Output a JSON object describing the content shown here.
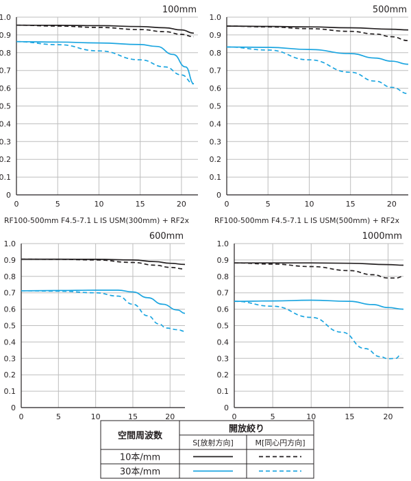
{
  "chart_data": [
    {
      "type": "line",
      "title": "100mm",
      "caption": "RF100-500mm F4.5-7.1 L IS USM(300mm) + RF2x",
      "xlim": [
        0,
        22
      ],
      "ylim": [
        0,
        1.0
      ],
      "xticks": [
        "0",
        "5",
        "10",
        "15",
        "20"
      ],
      "yticks": [
        "0",
        "0.1",
        "0.2",
        "0.3",
        "0.4",
        "0.5",
        "0.6",
        "0.7",
        "0.8",
        "0.9",
        "1.0"
      ],
      "series": [
        {
          "name": "10本/mm S",
          "color": "#231f20",
          "dash": false,
          "points": [
            [
              0,
              0.955
            ],
            [
              5,
              0.954
            ],
            [
              10,
              0.952
            ],
            [
              15,
              0.947
            ],
            [
              18,
              0.94
            ],
            [
              20,
              0.928
            ],
            [
              21.5,
              0.91
            ]
          ]
        },
        {
          "name": "10本/mm M",
          "color": "#231f20",
          "dash": true,
          "points": [
            [
              0,
              0.955
            ],
            [
              5,
              0.95
            ],
            [
              10,
              0.942
            ],
            [
              15,
              0.93
            ],
            [
              18,
              0.918
            ],
            [
              20,
              0.903
            ],
            [
              21.5,
              0.89
            ]
          ]
        },
        {
          "name": "30本/mm S",
          "color": "#1ba5e0",
          "dash": false,
          "points": [
            [
              0,
              0.862
            ],
            [
              5,
              0.86
            ],
            [
              10,
              0.855
            ],
            [
              15,
              0.846
            ],
            [
              17,
              0.835
            ],
            [
              19,
              0.79
            ],
            [
              20.5,
              0.72
            ],
            [
              21.5,
              0.625
            ]
          ]
        },
        {
          "name": "30本/mm M",
          "color": "#1ba5e0",
          "dash": true,
          "points": [
            [
              0,
              0.862
            ],
            [
              5,
              0.845
            ],
            [
              10,
              0.81
            ],
            [
              15,
              0.76
            ],
            [
              18,
              0.72
            ],
            [
              20,
              0.675
            ],
            [
              21.5,
              0.625
            ]
          ]
        }
      ]
    },
    {
      "type": "line",
      "title": "500mm",
      "caption": "RF100-500mm F4.5-7.1 L IS USM(500mm) + RF2x",
      "xlim": [
        0,
        22
      ],
      "ylim": [
        0,
        1.0
      ],
      "xticks": [
        "0",
        "5",
        "10",
        "15",
        "20"
      ],
      "yticks": [
        "0",
        "0.1",
        "0.2",
        "0.3",
        "0.4",
        "0.5",
        "0.6",
        "0.7",
        "0.8",
        "0.9",
        "1.0"
      ],
      "series": [
        {
          "name": "10本/mm S",
          "color": "#231f20",
          "dash": false,
          "points": [
            [
              0,
              0.95
            ],
            [
              5,
              0.948
            ],
            [
              10,
              0.945
            ],
            [
              15,
              0.94
            ],
            [
              20,
              0.932
            ],
            [
              22,
              0.928
            ]
          ]
        },
        {
          "name": "10本/mm M",
          "color": "#231f20",
          "dash": true,
          "points": [
            [
              0,
              0.95
            ],
            [
              5,
              0.945
            ],
            [
              10,
              0.935
            ],
            [
              15,
              0.92
            ],
            [
              18,
              0.905
            ],
            [
              20,
              0.89
            ],
            [
              22,
              0.868
            ]
          ]
        },
        {
          "name": "30本/mm S",
          "color": "#1ba5e0",
          "dash": false,
          "points": [
            [
              0,
              0.832
            ],
            [
              5,
              0.83
            ],
            [
              10,
              0.818
            ],
            [
              15,
              0.795
            ],
            [
              18,
              0.77
            ],
            [
              20,
              0.752
            ],
            [
              22,
              0.735
            ]
          ]
        },
        {
          "name": "30本/mm M",
          "color": "#1ba5e0",
          "dash": true,
          "points": [
            [
              0,
              0.832
            ],
            [
              5,
              0.815
            ],
            [
              10,
              0.76
            ],
            [
              15,
              0.69
            ],
            [
              18,
              0.64
            ],
            [
              20,
              0.605
            ],
            [
              22,
              0.57
            ]
          ]
        }
      ]
    },
    {
      "type": "line",
      "title": "600mm",
      "caption": "",
      "xlim": [
        0,
        22
      ],
      "ylim": [
        0,
        1.0
      ],
      "xticks": [
        "0",
        "5",
        "10",
        "15",
        "20"
      ],
      "yticks": [
        "0",
        "0.1",
        "0.2",
        "0.3",
        "0.4",
        "0.5",
        "0.6",
        "0.7",
        "0.8",
        "0.9",
        "1.0"
      ],
      "series": [
        {
          "name": "10本/mm S",
          "color": "#231f20",
          "dash": false,
          "points": [
            [
              0,
              0.905
            ],
            [
              5,
              0.905
            ],
            [
              10,
              0.904
            ],
            [
              15,
              0.9
            ],
            [
              18,
              0.89
            ],
            [
              20,
              0.88
            ],
            [
              22,
              0.873
            ]
          ]
        },
        {
          "name": "10本/mm M",
          "color": "#231f20",
          "dash": true,
          "points": [
            [
              0,
              0.905
            ],
            [
              5,
              0.904
            ],
            [
              10,
              0.9
            ],
            [
              15,
              0.885
            ],
            [
              18,
              0.868
            ],
            [
              20,
              0.855
            ],
            [
              22,
              0.845
            ]
          ]
        },
        {
          "name": "30本/mm S",
          "color": "#1ba5e0",
          "dash": false,
          "points": [
            [
              0,
              0.712
            ],
            [
              5,
              0.714
            ],
            [
              10,
              0.716
            ],
            [
              13,
              0.716
            ],
            [
              15,
              0.705
            ],
            [
              17,
              0.67
            ],
            [
              19,
              0.63
            ],
            [
              21,
              0.595
            ],
            [
              22,
              0.575
            ]
          ]
        },
        {
          "name": "30本/mm M",
          "color": "#1ba5e0",
          "dash": true,
          "points": [
            [
              0,
              0.712
            ],
            [
              5,
              0.71
            ],
            [
              10,
              0.7
            ],
            [
              13,
              0.68
            ],
            [
              15,
              0.63
            ],
            [
              17,
              0.56
            ],
            [
              18.5,
              0.51
            ],
            [
              19.5,
              0.485
            ],
            [
              21,
              0.475
            ],
            [
              22,
              0.465
            ]
          ]
        }
      ]
    },
    {
      "type": "line",
      "title": "1000mm",
      "caption": "",
      "xlim": [
        0,
        22
      ],
      "ylim": [
        0,
        1.0
      ],
      "xticks": [
        "0",
        "5",
        "10",
        "15",
        "20"
      ],
      "yticks": [
        "0",
        "0.1",
        "0.2",
        "0.3",
        "0.4",
        "0.5",
        "0.6",
        "0.7",
        "0.8",
        "0.9",
        "1.0"
      ],
      "series": [
        {
          "name": "10本/mm S",
          "color": "#231f20",
          "dash": false,
          "points": [
            [
              0,
              0.882
            ],
            [
              5,
              0.882
            ],
            [
              10,
              0.882
            ],
            [
              15,
              0.88
            ],
            [
              20,
              0.872
            ],
            [
              22,
              0.868
            ]
          ]
        },
        {
          "name": "10本/mm M",
          "color": "#231f20",
          "dash": true,
          "points": [
            [
              0,
              0.882
            ],
            [
              5,
              0.875
            ],
            [
              10,
              0.86
            ],
            [
              15,
              0.835
            ],
            [
              18,
              0.81
            ],
            [
              20,
              0.79
            ],
            [
              21,
              0.79
            ],
            [
              22,
              0.8
            ]
          ]
        },
        {
          "name": "30本/mm S",
          "color": "#1ba5e0",
          "dash": false,
          "points": [
            [
              0,
              0.648
            ],
            [
              5,
              0.65
            ],
            [
              10,
              0.655
            ],
            [
              15,
              0.648
            ],
            [
              18,
              0.628
            ],
            [
              20,
              0.61
            ],
            [
              22,
              0.6
            ]
          ]
        },
        {
          "name": "30本/mm M",
          "color": "#1ba5e0",
          "dash": true,
          "points": [
            [
              0,
              0.648
            ],
            [
              5,
              0.618
            ],
            [
              10,
              0.55
            ],
            [
              14,
              0.46
            ],
            [
              17,
              0.36
            ],
            [
              19,
              0.31
            ],
            [
              20,
              0.298
            ],
            [
              21,
              0.3
            ],
            [
              21.7,
              0.325
            ]
          ]
        }
      ]
    }
  ],
  "legend": {
    "header_freq": "空間周波数",
    "header_aperture": "開放絞り",
    "col_s": "S[放射方向]",
    "col_m": "M[同心円方向]",
    "rows": [
      {
        "label": "10本/mm",
        "color": "#231f20"
      },
      {
        "label": "30本/mm",
        "color": "#1ba5e0"
      }
    ]
  }
}
